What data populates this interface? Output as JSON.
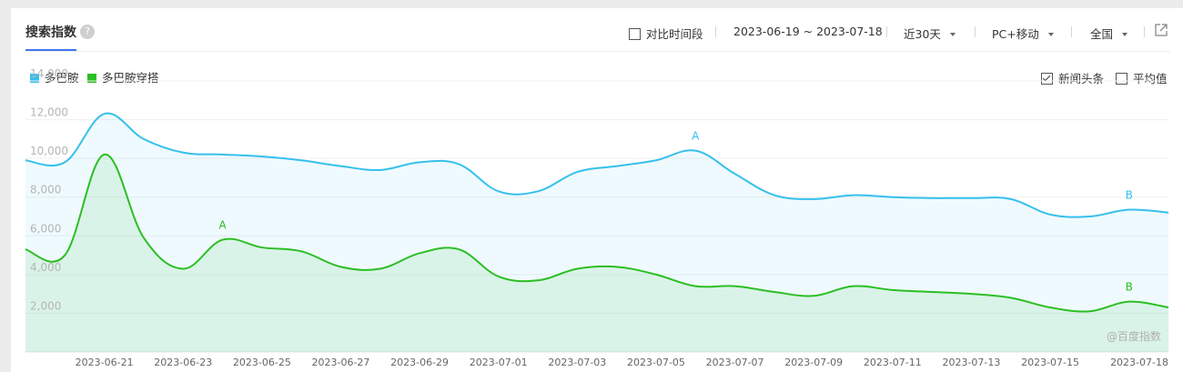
{
  "header": {
    "title": "搜索指数",
    "help_glyph": "?",
    "compare_label": "对比时间段",
    "date_range": "2023-06-19 ~ 2023-07-18",
    "period": "近30天",
    "device": "PC+移动",
    "region": "全国"
  },
  "legend": {
    "news_label": "新闻头条",
    "news_checked": true,
    "avg_label": "平均值",
    "avg_checked": false
  },
  "watermark": "@百度指数",
  "chart_data": {
    "type": "area",
    "ylim": [
      0,
      14000
    ],
    "y_ticks": [
      2000,
      4000,
      6000,
      8000,
      10000,
      12000,
      14000
    ],
    "y_tick_labels": [
      "2,000",
      "4,000",
      "6,000",
      "8,000",
      "10,000",
      "12,000",
      "14,000"
    ],
    "grid": true,
    "legend_position": "top-left",
    "x": [
      "2023-06-19",
      "2023-06-20",
      "2023-06-21",
      "2023-06-22",
      "2023-06-23",
      "2023-06-24",
      "2023-06-25",
      "2023-06-26",
      "2023-06-27",
      "2023-06-28",
      "2023-06-29",
      "2023-06-30",
      "2023-07-01",
      "2023-07-02",
      "2023-07-03",
      "2023-07-04",
      "2023-07-05",
      "2023-07-06",
      "2023-07-07",
      "2023-07-08",
      "2023-07-09",
      "2023-07-10",
      "2023-07-11",
      "2023-07-12",
      "2023-07-13",
      "2023-07-14",
      "2023-07-15",
      "2023-07-16",
      "2023-07-17",
      "2023-07-18"
    ],
    "x_tick_labels": [
      "2023-06-21",
      "2023-06-23",
      "2023-06-25",
      "2023-06-27",
      "2023-06-29",
      "2023-07-01",
      "2023-07-03",
      "2023-07-05",
      "2023-07-07",
      "2023-07-09",
      "2023-07-11",
      "2023-07-13",
      "2023-07-15",
      "2023-07-18"
    ],
    "series": [
      {
        "name": "多巴胺",
        "color": "#36c0ec",
        "values": [
          9900,
          9800,
          12300,
          11000,
          10300,
          10200,
          10100,
          9900,
          9600,
          9400,
          9800,
          9700,
          8300,
          8300,
          9300,
          9600,
          9900,
          10400,
          9200,
          8100,
          7900,
          8100,
          8000,
          7950,
          7950,
          7900,
          7100,
          7000,
          7350,
          7200
        ],
        "markers": [
          {
            "label": "A",
            "x": "2023-07-06"
          },
          {
            "label": "B",
            "x": "2023-07-17"
          }
        ]
      },
      {
        "name": "多巴胺穿搭",
        "color": "#2bbf24",
        "values": [
          5300,
          5000,
          10200,
          5900,
          4300,
          5800,
          5400,
          5200,
          4400,
          4300,
          5100,
          5300,
          3900,
          3700,
          4300,
          4400,
          4000,
          3400,
          3400,
          3100,
          2900,
          3400,
          3200,
          3100,
          3000,
          2800,
          2300,
          2100,
          2600,
          2300
        ],
        "markers": [
          {
            "label": "A",
            "x": "2023-06-24"
          },
          {
            "label": "B",
            "x": "2023-07-17"
          }
        ]
      }
    ]
  }
}
